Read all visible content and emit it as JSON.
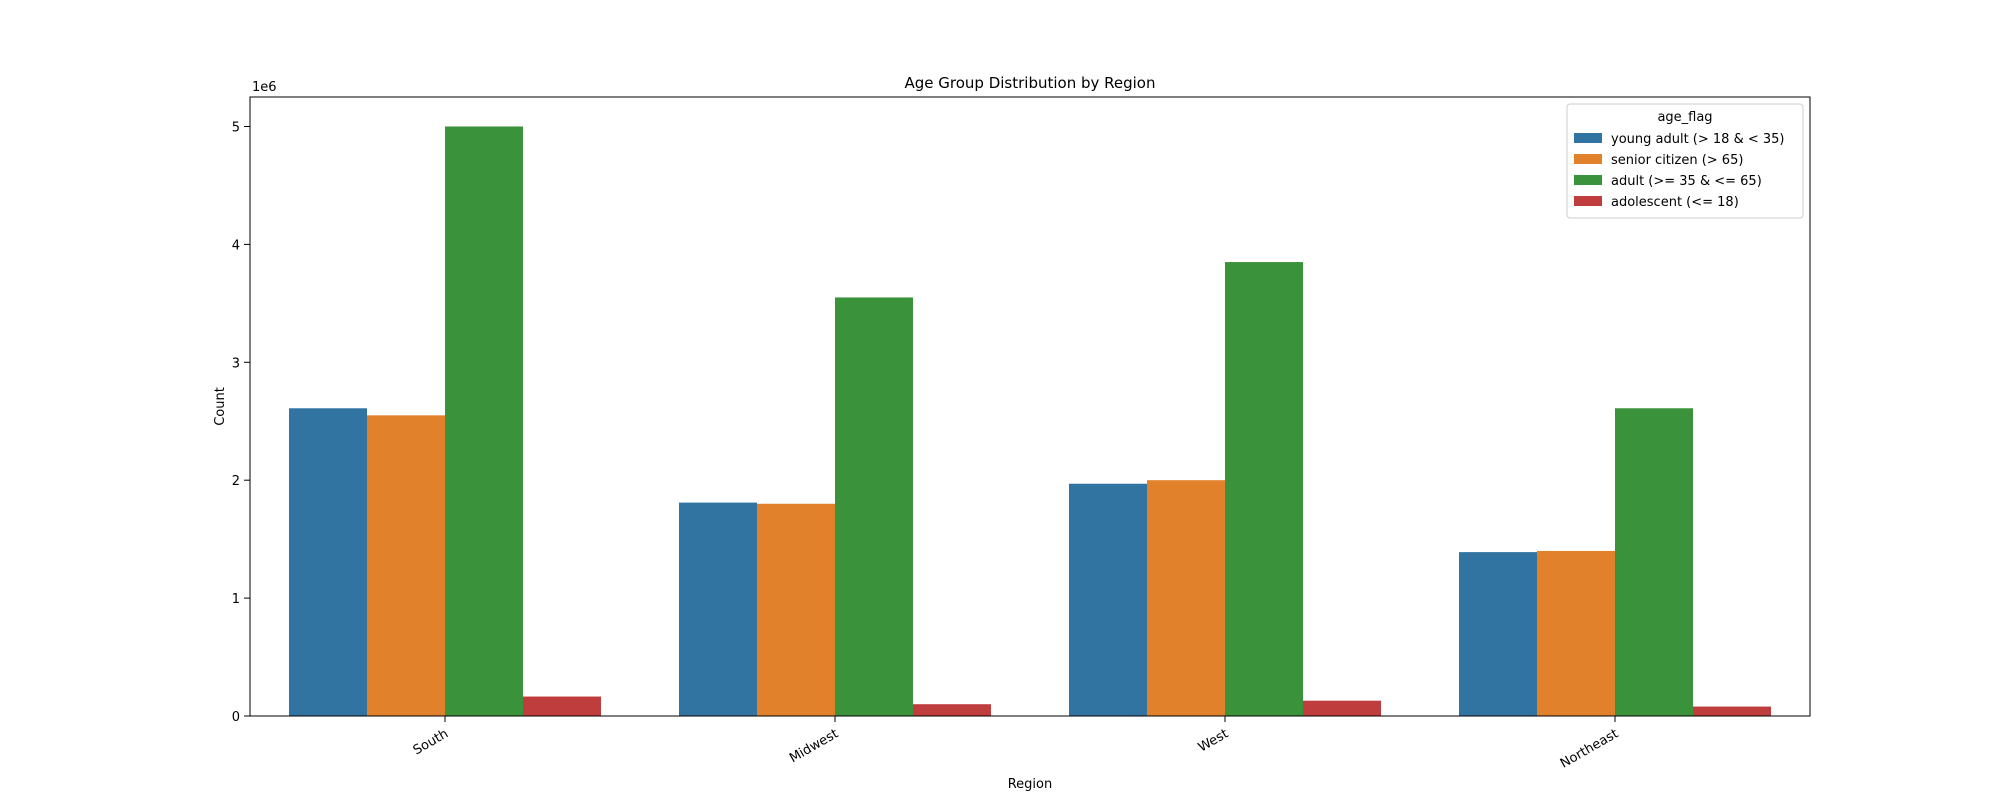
{
  "chart_data": {
    "type": "bar",
    "title": "Age Group Distribution by Region",
    "xlabel": "Region",
    "ylabel": "Count",
    "y_offset_text": "1e6",
    "categories": [
      "South",
      "Midwest",
      "West",
      "Northeast"
    ],
    "y_ticks": [
      0,
      1,
      2,
      3,
      4,
      5
    ],
    "ylim": [
      0,
      5.25
    ],
    "y_scale_factor": 1000000,
    "grid": false,
    "legend": {
      "title": "age_flag",
      "placement": "top-right"
    },
    "series": [
      {
        "name": "young adult (> 18 & < 35)",
        "color": "#3274a1",
        "values": [
          2610000,
          1810000,
          1970000,
          1390000
        ]
      },
      {
        "name": "senior citizen (> 65)",
        "color": "#e1812c",
        "values": [
          2550000,
          1800000,
          2000000,
          1400000
        ]
      },
      {
        "name": "adult (>= 35 & <= 65)",
        "color": "#3a923a",
        "values": [
          5000000,
          3550000,
          3850000,
          2610000
        ]
      },
      {
        "name": "adolescent (<= 18)",
        "color": "#c03d3e",
        "values": [
          165000,
          100000,
          130000,
          80000
        ]
      }
    ]
  }
}
